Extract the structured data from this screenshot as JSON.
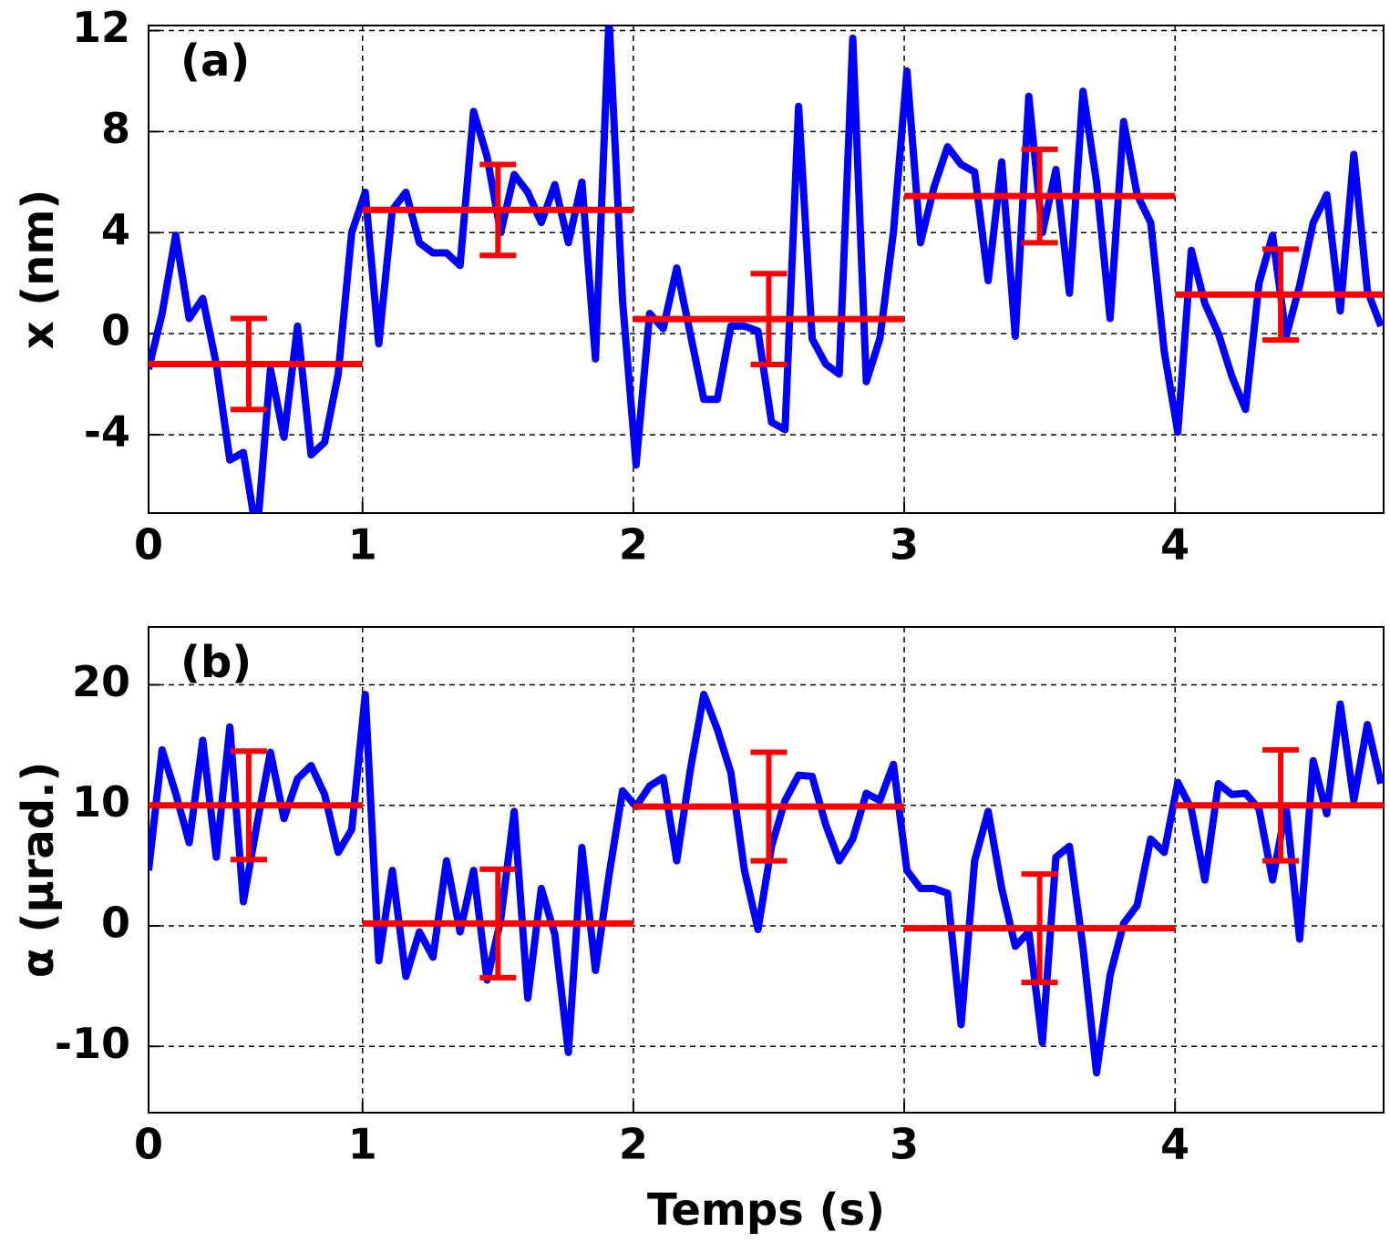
{
  "chart_data": [
    {
      "type": "line",
      "annotation": "(a)",
      "ylabel": "x (nm)",
      "xlim": [
        0.21,
        4.77
      ],
      "xticks": [
        {
          "value": 0.21,
          "label": "0"
        },
        1,
        2,
        3,
        4
      ],
      "ylim": [
        -7.1,
        12.2
      ],
      "yticks": [
        -4,
        0,
        4,
        8,
        12
      ],
      "grid": true,
      "x": [
        0.21,
        0.26,
        0.31,
        0.36,
        0.41,
        0.46,
        0.51,
        0.56,
        0.61,
        0.66,
        0.71,
        0.76,
        0.81,
        0.86,
        0.91,
        0.96,
        1.01,
        1.06,
        1.11,
        1.16,
        1.21,
        1.26,
        1.31,
        1.36,
        1.41,
        1.46,
        1.51,
        1.56,
        1.61,
        1.66,
        1.71,
        1.76,
        1.81,
        1.86,
        1.91,
        1.96,
        2.01,
        2.06,
        2.11,
        2.16,
        2.21,
        2.26,
        2.31,
        2.36,
        2.41,
        2.46,
        2.51,
        2.56,
        2.61,
        2.66,
        2.71,
        2.76,
        2.81,
        2.86,
        2.91,
        2.96,
        3.01,
        3.06,
        3.11,
        3.16,
        3.21,
        3.26,
        3.31,
        3.36,
        3.41,
        3.46,
        3.51,
        3.56,
        3.61,
        3.66,
        3.71,
        3.76,
        3.81,
        3.86,
        3.91,
        3.96,
        4.01,
        4.06,
        4.11,
        4.16,
        4.21,
        4.26,
        4.31,
        4.36,
        4.41,
        4.46,
        4.51,
        4.56,
        4.61,
        4.66,
        4.71,
        4.76
      ],
      "series": [
        {
          "color": "#0000ff",
          "values": [
            -1.4,
            0.8,
            3.9,
            0.6,
            1.4,
            -1.2,
            -5.0,
            -4.7,
            -8.0,
            -1.4,
            -4.1,
            0.3,
            -4.8,
            -4.3,
            -1.6,
            4.0,
            5.6,
            -0.4,
            4.9,
            5.6,
            3.6,
            3.2,
            3.2,
            2.7,
            8.8,
            7.0,
            4.0,
            6.3,
            5.6,
            4.4,
            5.9,
            3.6,
            6.0,
            -1.0,
            12.5,
            1.3,
            -5.2,
            0.8,
            0.2,
            2.6,
            0.0,
            -2.6,
            -2.6,
            0.3,
            0.3,
            0.1,
            -3.5,
            -3.8,
            9.0,
            -0.2,
            -1.2,
            -1.6,
            11.7,
            -1.9,
            -0.2,
            4.0,
            10.4,
            3.6,
            5.8,
            7.4,
            6.7,
            6.4,
            2.1,
            6.8,
            -0.1,
            9.4,
            4.0,
            6.5,
            1.6,
            9.6,
            6.0,
            0.6,
            8.4,
            5.5,
            4.4,
            -0.7,
            -3.9,
            3.3,
            1.2,
            0.0,
            -1.7,
            -3.0,
            2.0,
            3.9,
            -0.1,
            1.9,
            4.4,
            5.5,
            0.9,
            7.1,
            1.7,
            0.3
          ]
        }
      ],
      "means": {
        "color": "#ff0000",
        "items": [
          {
            "start": 0.21,
            "end": 1,
            "value": -1.2,
            "error": 1.8,
            "at": 0.58
          },
          {
            "start": 1,
            "end": 2,
            "value": 4.9,
            "error": 1.8,
            "at": 1.5
          },
          {
            "start": 2,
            "end": 3,
            "value": 0.58,
            "error": 1.8,
            "at": 2.5
          },
          {
            "start": 3,
            "end": 4,
            "value": 5.45,
            "error": 1.85,
            "at": 3.5
          },
          {
            "start": 4,
            "end": 4.77,
            "value": 1.55,
            "error": 1.8,
            "at": 4.39
          }
        ]
      }
    },
    {
      "type": "line",
      "annotation": "(b)",
      "ylabel": "α (μrad.)",
      "xlabel": "Temps (s)",
      "xlim": [
        0.21,
        4.77
      ],
      "xticks": [
        {
          "value": 0.21,
          "label": "0"
        },
        1,
        2,
        3,
        4
      ],
      "ylim": [
        -15.5,
        24.8
      ],
      "yticks": [
        -10,
        0,
        10,
        20
      ],
      "grid": true,
      "x": [
        0.21,
        0.26,
        0.31,
        0.36,
        0.41,
        0.46,
        0.51,
        0.56,
        0.61,
        0.66,
        0.71,
        0.76,
        0.81,
        0.86,
        0.91,
        0.96,
        1.01,
        1.06,
        1.11,
        1.16,
        1.21,
        1.26,
        1.31,
        1.36,
        1.41,
        1.46,
        1.51,
        1.56,
        1.61,
        1.66,
        1.71,
        1.76,
        1.81,
        1.86,
        1.91,
        1.96,
        2.01,
        2.06,
        2.11,
        2.16,
        2.21,
        2.26,
        2.31,
        2.36,
        2.41,
        2.46,
        2.51,
        2.56,
        2.61,
        2.66,
        2.71,
        2.76,
        2.81,
        2.86,
        2.91,
        2.96,
        3.01,
        3.06,
        3.11,
        3.16,
        3.21,
        3.26,
        3.31,
        3.36,
        3.41,
        3.46,
        3.51,
        3.56,
        3.61,
        3.66,
        3.71,
        3.76,
        3.81,
        3.86,
        3.91,
        3.96,
        4.01,
        4.06,
        4.11,
        4.16,
        4.21,
        4.26,
        4.31,
        4.36,
        4.41,
        4.46,
        4.51,
        4.56,
        4.61,
        4.66,
        4.71,
        4.76
      ],
      "series": [
        {
          "color": "#0000ff",
          "values": [
            4.6,
            14.6,
            11.0,
            6.9,
            15.4,
            5.7,
            16.5,
            2.0,
            8.4,
            14.4,
            8.9,
            12.2,
            13.3,
            10.9,
            6.1,
            8.0,
            19.2,
            -2.9,
            4.6,
            -4.2,
            -0.5,
            -2.6,
            5.4,
            -0.5,
            4.6,
            -4.5,
            0.5,
            9.5,
            -6.0,
            3.1,
            -0.7,
            -10.5,
            6.5,
            -3.7,
            4.2,
            11.2,
            9.9,
            11.6,
            12.3,
            5.4,
            12.9,
            19.2,
            16.3,
            12.7,
            4.6,
            -0.3,
            6.6,
            10.4,
            12.5,
            12.4,
            8.4,
            5.4,
            7.2,
            11.0,
            10.4,
            13.4,
            4.6,
            3.1,
            3.1,
            2.7,
            -8.2,
            5.4,
            9.5,
            3.1,
            -1.7,
            -0.5,
            -9.7,
            5.7,
            6.6,
            -1.8,
            -12.2,
            -4.1,
            0.2,
            1.7,
            7.2,
            6.1,
            11.9,
            9.7,
            3.8,
            11.8,
            10.9,
            11.0,
            9.7,
            3.8,
            9.9,
            -1.1,
            13.7,
            9.3,
            18.4,
            10.4,
            16.7,
            11.8
          ]
        }
      ],
      "means": {
        "color": "#ff0000",
        "items": [
          {
            "start": 0.21,
            "end": 1,
            "value": 10.0,
            "error": 4.5,
            "at": 0.58
          },
          {
            "start": 1,
            "end": 2,
            "value": 0.2,
            "error": 4.5,
            "at": 1.5
          },
          {
            "start": 2,
            "end": 3,
            "value": 9.9,
            "error": 4.5,
            "at": 2.5
          },
          {
            "start": 3,
            "end": 4,
            "value": -0.2,
            "error": 4.5,
            "at": 3.5
          },
          {
            "start": 4,
            "end": 4.77,
            "value": 10.0,
            "error": 4.6,
            "at": 4.39
          }
        ]
      }
    }
  ]
}
